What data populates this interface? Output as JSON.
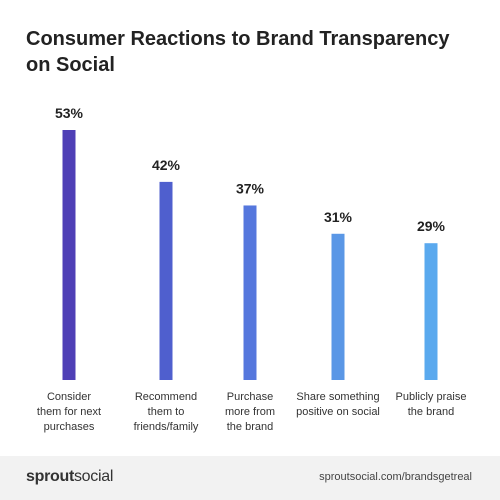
{
  "title_lines": [
    "Consumer Reactions to Brand Transparency",
    "on Social"
  ],
  "chart_data": {
    "type": "bar",
    "title": "Consumer Reactions to Brand Transparency on Social",
    "categories": [
      [
        "Consider",
        "them for next",
        "purchases"
      ],
      [
        "Recommend",
        "them to",
        "friends/family"
      ],
      [
        "Purchase",
        "more from",
        "the brand"
      ],
      [
        "Share something",
        "positive on social"
      ],
      [
        "Publicly praise",
        "the brand"
      ]
    ],
    "values": [
      53,
      42,
      37,
      31,
      29
    ],
    "value_labels": [
      "53%",
      "42%",
      "37%",
      "31%",
      "29%"
    ],
    "ylim": [
      0,
      53
    ],
    "colors": [
      "#4f3fb6",
      "#4f5fce",
      "#5577dd",
      "#5a97e6",
      "#5aa9ee"
    ],
    "grid": false,
    "legend": "none"
  },
  "footer": {
    "brand_bold": "sprout",
    "brand_light": "social",
    "url": "sproutsocial.com/brandsgetreal"
  }
}
